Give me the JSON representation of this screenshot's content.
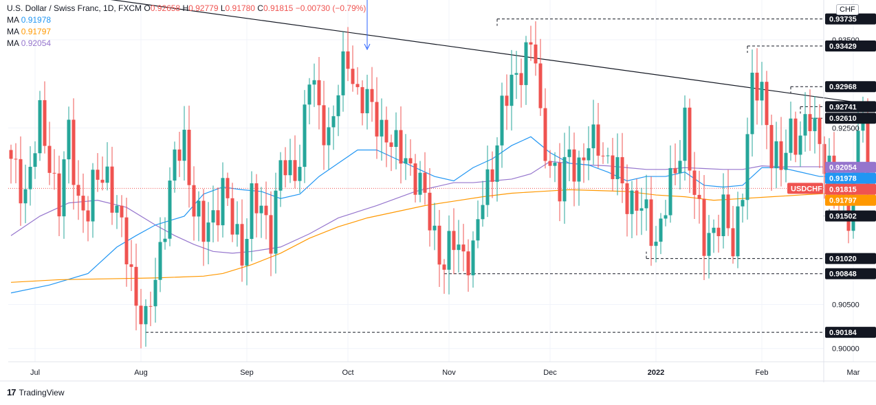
{
  "header": {
    "symbol": "U.S. Dollar / Swiss Franc, 1D, FXCM",
    "open_label": "O",
    "open": "0.92658",
    "high_label": "H",
    "high": "0.92779",
    "low_label": "L",
    "low": "0.91780",
    "close_label": "C",
    "close": "0.91815",
    "change": "−0.00730 (−0.79%)",
    "ma1": {
      "label": "MA",
      "value": "0.91978",
      "color": "#2196f3"
    },
    "ma2": {
      "label": "MA",
      "value": "0.91797",
      "color": "#ff9800"
    },
    "ma3": {
      "label": "MA",
      "value": "0.92054",
      "color": "#9575cd"
    }
  },
  "currency_badge": "CHF",
  "footer": {
    "brand": "TradingView"
  },
  "colors": {
    "up": "#26a69a",
    "down": "#ef5350",
    "grid": "#f0f3fa",
    "text": "#131722"
  },
  "chart_data": {
    "type": "candlestick",
    "symbol": "USDCHF",
    "yrange": [
      0.8985,
      0.9395
    ],
    "y_ticks": [
      "0.93500",
      "0.92500",
      "0.90500",
      "0.90000"
    ],
    "x_ticks": [
      {
        "label": "Jul",
        "bar": 5
      },
      {
        "label": "Aug",
        "bar": 27
      },
      {
        "label": "Sep",
        "bar": 49
      },
      {
        "label": "Oct",
        "bar": 70
      },
      {
        "label": "Nov",
        "bar": 91
      },
      {
        "label": "Dec",
        "bar": 112
      },
      {
        "label": "2022",
        "bar": 134
      },
      {
        "label": "Feb",
        "bar": 156
      },
      {
        "label": "Mar",
        "bar": 175
      }
    ],
    "bar_count": 185,
    "anchors": [
      [
        0,
        0.9205
      ],
      [
        3,
        0.918
      ],
      [
        6,
        0.9255
      ],
      [
        8,
        0.9215
      ],
      [
        10,
        0.9165
      ],
      [
        12,
        0.924
      ],
      [
        14,
        0.917
      ],
      [
        16,
        0.9155
      ],
      [
        18,
        0.9195
      ],
      [
        20,
        0.92
      ],
      [
        22,
        0.915
      ],
      [
        24,
        0.911
      ],
      [
        26,
        0.906
      ],
      [
        28,
        0.9022
      ],
      [
        30,
        0.908
      ],
      [
        32,
        0.915
      ],
      [
        34,
        0.921
      ],
      [
        36,
        0.9235
      ],
      [
        38,
        0.9165
      ],
      [
        40,
        0.9125
      ],
      [
        42,
        0.915
      ],
      [
        44,
        0.9185
      ],
      [
        46,
        0.9135
      ],
      [
        48,
        0.911
      ],
      [
        50,
        0.917
      ],
      [
        52,
        0.915
      ],
      [
        54,
        0.9135
      ],
      [
        56,
        0.921
      ],
      [
        58,
        0.919
      ],
      [
        60,
        0.922
      ],
      [
        62,
        0.931
      ],
      [
        64,
        0.9265
      ],
      [
        66,
        0.9245
      ],
      [
        68,
        0.929
      ],
      [
        70,
        0.933
      ],
      [
        72,
        0.929
      ],
      [
        74,
        0.9275
      ],
      [
        76,
        0.926
      ],
      [
        78,
        0.9245
      ],
      [
        80,
        0.922
      ],
      [
        82,
        0.922
      ],
      [
        84,
        0.9195
      ],
      [
        86,
        0.9165
      ],
      [
        88,
        0.913
      ],
      [
        90,
        0.9095
      ],
      [
        92,
        0.912
      ],
      [
        94,
        0.911
      ],
      [
        96,
        0.9105
      ],
      [
        98,
        0.917
      ],
      [
        100,
        0.921
      ],
      [
        102,
        0.9265
      ],
      [
        104,
        0.93
      ],
      [
        106,
        0.9325
      ],
      [
        108,
        0.934
      ],
      [
        109,
        0.9325
      ],
      [
        110,
        0.9255
      ],
      [
        112,
        0.9215
      ],
      [
        114,
        0.9175
      ],
      [
        116,
        0.9225
      ],
      [
        118,
        0.9205
      ],
      [
        120,
        0.9225
      ],
      [
        122,
        0.924
      ],
      [
        124,
        0.921
      ],
      [
        126,
        0.9195
      ],
      [
        128,
        0.9175
      ],
      [
        130,
        0.9165
      ],
      [
        132,
        0.9145
      ],
      [
        134,
        0.9125
      ],
      [
        136,
        0.9165
      ],
      [
        138,
        0.9195
      ],
      [
        140,
        0.9265
      ],
      [
        142,
        0.917
      ],
      [
        144,
        0.912
      ],
      [
        146,
        0.914
      ],
      [
        148,
        0.915
      ],
      [
        150,
        0.9115
      ],
      [
        152,
        0.919
      ],
      [
        154,
        0.929
      ],
      [
        156,
        0.9295
      ],
      [
        158,
        0.9225
      ],
      [
        160,
        0.92
      ],
      [
        162,
        0.925
      ],
      [
        164,
        0.924
      ],
      [
        166,
        0.9255
      ],
      [
        168,
        0.924
      ],
      [
        170,
        0.92
      ],
      [
        172,
        0.917
      ],
      [
        174,
        0.916
      ],
      [
        176,
        0.9235
      ],
      [
        177,
        0.9265
      ],
      [
        178,
        0.9182
      ]
    ],
    "ma_blue": {
      "label": "MA",
      "value": 0.91978,
      "points": [
        [
          0,
          0.9063
        ],
        [
          8,
          0.9072
        ],
        [
          16,
          0.9085
        ],
        [
          22,
          0.9115
        ],
        [
          26,
          0.9128
        ],
        [
          30,
          0.914
        ],
        [
          36,
          0.915
        ],
        [
          40,
          0.9175
        ],
        [
          44,
          0.9183
        ],
        [
          48,
          0.918
        ],
        [
          52,
          0.9178
        ],
        [
          56,
          0.917
        ],
        [
          60,
          0.9175
        ],
        [
          64,
          0.9195
        ],
        [
          68,
          0.921
        ],
        [
          72,
          0.9225
        ],
        [
          76,
          0.9225
        ],
        [
          80,
          0.9215
        ],
        [
          84,
          0.9205
        ],
        [
          88,
          0.9195
        ],
        [
          92,
          0.919
        ],
        [
          96,
          0.9205
        ],
        [
          100,
          0.9215
        ],
        [
          104,
          0.923
        ],
        [
          108,
          0.924
        ],
        [
          112,
          0.9222
        ],
        [
          116,
          0.921
        ],
        [
          120,
          0.9208
        ],
        [
          124,
          0.92
        ],
        [
          128,
          0.919
        ],
        [
          132,
          0.9195
        ],
        [
          136,
          0.9195
        ],
        [
          140,
          0.92
        ],
        [
          144,
          0.9185
        ],
        [
          148,
          0.9183
        ],
        [
          152,
          0.9185
        ],
        [
          156,
          0.9205
        ],
        [
          160,
          0.9205
        ],
        [
          164,
          0.92
        ],
        [
          168,
          0.9195
        ],
        [
          172,
          0.9195
        ],
        [
          176,
          0.92
        ],
        [
          178,
          0.9198
        ]
      ]
    },
    "ma_orange": {
      "label": "MA",
      "value": 0.91797,
      "points": [
        [
          0,
          0.9075
        ],
        [
          10,
          0.9078
        ],
        [
          20,
          0.9079
        ],
        [
          30,
          0.908
        ],
        [
          40,
          0.9082
        ],
        [
          44,
          0.9085
        ],
        [
          50,
          0.9095
        ],
        [
          56,
          0.9108
        ],
        [
          62,
          0.9125
        ],
        [
          68,
          0.9138
        ],
        [
          74,
          0.9148
        ],
        [
          80,
          0.9155
        ],
        [
          86,
          0.9162
        ],
        [
          92,
          0.9167
        ],
        [
          98,
          0.9172
        ],
        [
          104,
          0.9176
        ],
        [
          110,
          0.9178
        ],
        [
          116,
          0.918
        ],
        [
          122,
          0.9179
        ],
        [
          128,
          0.9178
        ],
        [
          134,
          0.9174
        ],
        [
          140,
          0.9172
        ],
        [
          146,
          0.9168
        ],
        [
          152,
          0.917
        ],
        [
          158,
          0.9172
        ],
        [
          164,
          0.9174
        ],
        [
          170,
          0.9176
        ],
        [
          176,
          0.9179
        ],
        [
          178,
          0.918
        ]
      ]
    },
    "ma_purple": {
      "label": "MA",
      "value": 0.92054,
      "points": [
        [
          0,
          0.9128
        ],
        [
          6,
          0.915
        ],
        [
          12,
          0.9165
        ],
        [
          18,
          0.9168
        ],
        [
          24,
          0.916
        ],
        [
          30,
          0.914
        ],
        [
          34,
          0.9128
        ],
        [
          38,
          0.9118
        ],
        [
          42,
          0.911
        ],
        [
          46,
          0.9108
        ],
        [
          50,
          0.911
        ],
        [
          56,
          0.9115
        ],
        [
          62,
          0.913
        ],
        [
          68,
          0.9148
        ],
        [
          72,
          0.9155
        ],
        [
          76,
          0.9162
        ],
        [
          80,
          0.917
        ],
        [
          84,
          0.9178
        ],
        [
          88,
          0.9183
        ],
        [
          92,
          0.9188
        ],
        [
          96,
          0.9188
        ],
        [
          100,
          0.919
        ],
        [
          104,
          0.9192
        ],
        [
          108,
          0.9198
        ],
        [
          112,
          0.9212
        ],
        [
          116,
          0.921
        ],
        [
          120,
          0.9208
        ],
        [
          124,
          0.9207
        ],
        [
          128,
          0.9205
        ],
        [
          132,
          0.9203
        ],
        [
          136,
          0.9203
        ],
        [
          140,
          0.9205
        ],
        [
          144,
          0.9204
        ],
        [
          148,
          0.9203
        ],
        [
          152,
          0.9203
        ],
        [
          156,
          0.9207
        ],
        [
          160,
          0.9206
        ],
        [
          164,
          0.9206
        ],
        [
          168,
          0.9206
        ],
        [
          172,
          0.9205
        ],
        [
          176,
          0.9205
        ],
        [
          178,
          0.9205
        ]
      ]
    },
    "trendline": {
      "from": [
        4,
        0.9408
      ],
      "to": [
        185,
        0.9272
      ]
    },
    "arrow_marker_bar": 74,
    "levels": [
      {
        "value": "0.93735",
        "price": 0.93735,
        "start_bar": 101,
        "color": "#131722"
      },
      {
        "value": "0.93429",
        "price": 0.93429,
        "start_bar": 153,
        "color": "#131722"
      },
      {
        "value": "0.92968",
        "price": 0.92968,
        "start_bar": 162,
        "color": "#131722"
      },
      {
        "value": "0.92741",
        "price": 0.92741,
        "start_bar": 164,
        "color": "#131722"
      },
      {
        "value": "0.92610",
        "price": 0.9261,
        "start_bar": 166,
        "color": "#131722"
      },
      {
        "value": "0.91502",
        "price": 0.91502,
        "start_bar": 170,
        "color": "#131722"
      },
      {
        "value": "0.91020",
        "price": 0.9102,
        "start_bar": 132,
        "color": "#131722"
      },
      {
        "value": "0.90848",
        "price": 0.90848,
        "start_bar": 90,
        "color": "#131722"
      },
      {
        "value": "0.90184",
        "price": 0.90184,
        "start_bar": 28,
        "color": "#131722"
      }
    ],
    "price_tags": [
      {
        "label": "0.92054",
        "price": 0.92054,
        "color": "#9575cd"
      },
      {
        "label": "0.91978",
        "price": 0.91978,
        "color": "#2196f3"
      },
      {
        "label": "0.91815",
        "price": 0.91815,
        "color": "#ef5350"
      },
      {
        "label": "0.91797",
        "price": 0.91797,
        "color": "#ff9800"
      }
    ],
    "symbol_tag": {
      "label": "USDCHF",
      "price": 0.91815,
      "color": "#ef5350"
    },
    "current_price": 0.91815
  }
}
